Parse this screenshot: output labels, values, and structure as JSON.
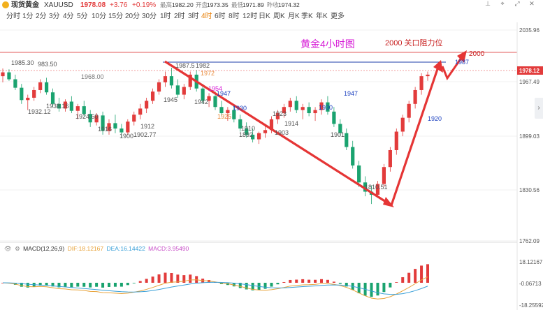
{
  "header": {
    "name": "现货黄金",
    "symbol": "XAUUSD",
    "price": "1978.08",
    "change": "+3.76",
    "pct": "+0.19%",
    "high_label": "最高",
    "high": "1982.20",
    "open_label": "开盘",
    "open": "1973.35",
    "low_label": "最低",
    "low": "1971.89",
    "prev_label": "昨收",
    "prev": "1974.32",
    "colors": {
      "up": "#e23b3b",
      "down": "#1aa36f"
    }
  },
  "toolbar_icons": [
    "pin-icon",
    "crosshair-icon",
    "fullscreen-icon",
    "close-icon"
  ],
  "tabs": [
    {
      "label": "分时"
    },
    {
      "label": "1分"
    },
    {
      "label": "2分"
    },
    {
      "label": "3分"
    },
    {
      "label": "4分"
    },
    {
      "label": "5分"
    },
    {
      "label": "10分"
    },
    {
      "label": "15分"
    },
    {
      "label": "20分"
    },
    {
      "label": "30分"
    },
    {
      "label": "1时"
    },
    {
      "label": "2时"
    },
    {
      "label": "3时"
    },
    {
      "label": "4时",
      "active": true
    },
    {
      "label": "6时"
    },
    {
      "label": "8时"
    },
    {
      "label": "12时"
    },
    {
      "label": "日K"
    },
    {
      "label": "周K"
    },
    {
      "label": "月K"
    },
    {
      "label": "季K"
    },
    {
      "label": "年K"
    },
    {
      "label": "更多"
    }
  ],
  "chart": {
    "axis_labels": [
      "2035.96",
      "1967.49",
      "1899.03",
      "1830.56",
      "1762.09"
    ],
    "current_price_tag": "1978.12",
    "title": "黄金4小时图",
    "note": "2000 关口阻力位",
    "target_label": "2000",
    "annotations": {
      "a1985": "1985.30",
      "a1983": "983.50",
      "a1968": "1968.00",
      "a1932": "1932.12",
      "a1938": "1938.16",
      "a1924": "1924.60",
      "a1916": "1916",
      "a1900": "1900",
      "a1902": "1902.77",
      "a1912": "1912",
      "a1945": "1945",
      "a1987": "1987.5",
      "a1982": "1982",
      "a1972": "1972",
      "a1947a": "1947",
      "a1954": "1954",
      "a1942": "1942",
      "a1930a": "1930",
      "a1925": "1925",
      "a1910": "1910",
      "a1892": "1892",
      "a1923": "1923",
      "a1914": "1914",
      "a1903": "1903",
      "a1930b": "1930",
      "a1947b": "1947",
      "a1901": "1901",
      "a1810": "1810.51",
      "a1920": "1920",
      "a1987b": "1987"
    }
  },
  "chart_data": {
    "type": "candlestick",
    "title": "黄金4小时图",
    "ylim": [
      1762.09,
      2035.96
    ],
    "yticks": [
      2035.96,
      1967.49,
      1899.03,
      1830.56,
      1762.09
    ],
    "candles": [
      [
        1976,
        1986,
        1968,
        1981
      ],
      [
        1981,
        1985,
        1970,
        1972
      ],
      [
        1972,
        1978,
        1958,
        1961
      ],
      [
        1961,
        1966,
        1940,
        1945
      ],
      [
        1945,
        1952,
        1932,
        1948
      ],
      [
        1948,
        1962,
        1944,
        1958
      ],
      [
        1958,
        1972,
        1954,
        1968
      ],
      [
        1968,
        1974,
        1952,
        1955
      ],
      [
        1955,
        1960,
        1936,
        1940
      ],
      [
        1940,
        1948,
        1930,
        1934
      ],
      [
        1934,
        1946,
        1930,
        1943
      ],
      [
        1943,
        1950,
        1928,
        1931
      ],
      [
        1931,
        1940,
        1920,
        1937
      ],
      [
        1937,
        1944,
        1924,
        1927
      ],
      [
        1927,
        1932,
        1910,
        1916
      ],
      [
        1916,
        1928,
        1912,
        1925
      ],
      [
        1925,
        1930,
        1900,
        1905
      ],
      [
        1905,
        1920,
        1900,
        1915
      ],
      [
        1915,
        1926,
        1902,
        1908
      ],
      [
        1908,
        1914,
        1896,
        1903
      ],
      [
        1903,
        1920,
        1900,
        1917
      ],
      [
        1917,
        1930,
        1912,
        1926
      ],
      [
        1926,
        1940,
        1920,
        1934
      ],
      [
        1934,
        1948,
        1928,
        1944
      ],
      [
        1944,
        1960,
        1940,
        1956
      ],
      [
        1956,
        1972,
        1952,
        1968
      ],
      [
        1968,
        1982,
        1962,
        1976
      ],
      [
        1976,
        1987,
        1960,
        1964
      ],
      [
        1964,
        1972,
        1948,
        1952
      ],
      [
        1952,
        1966,
        1946,
        1962
      ],
      [
        1962,
        1982,
        1958,
        1978
      ],
      [
        1978,
        1984,
        1956,
        1960
      ],
      [
        1960,
        1966,
        1940,
        1944
      ],
      [
        1944,
        1954,
        1936,
        1950
      ],
      [
        1950,
        1956,
        1932,
        1936
      ],
      [
        1936,
        1944,
        1924,
        1928
      ],
      [
        1928,
        1936,
        1918,
        1932
      ],
      [
        1932,
        1938,
        1916,
        1920
      ],
      [
        1920,
        1926,
        1904,
        1908
      ],
      [
        1908,
        1916,
        1896,
        1900
      ],
      [
        1900,
        1908,
        1890,
        1894
      ],
      [
        1894,
        1904,
        1888,
        1902
      ],
      [
        1902,
        1912,
        1896,
        1906
      ],
      [
        1906,
        1924,
        1902,
        1920
      ],
      [
        1920,
        1932,
        1914,
        1928
      ],
      [
        1928,
        1940,
        1922,
        1936
      ],
      [
        1936,
        1948,
        1930,
        1944
      ],
      [
        1944,
        1950,
        1928,
        1932
      ],
      [
        1932,
        1940,
        1920,
        1936
      ],
      [
        1936,
        1942,
        1924,
        1928
      ],
      [
        1928,
        1936,
        1918,
        1932
      ],
      [
        1932,
        1946,
        1926,
        1942
      ],
      [
        1942,
        1950,
        1926,
        1930
      ],
      [
        1930,
        1936,
        1910,
        1914
      ],
      [
        1914,
        1920,
        1898,
        1902
      ],
      [
        1902,
        1908,
        1880,
        1884
      ],
      [
        1884,
        1892,
        1856,
        1860
      ],
      [
        1860,
        1866,
        1832,
        1838
      ],
      [
        1838,
        1846,
        1820,
        1826
      ],
      [
        1826,
        1834,
        1810,
        1822
      ],
      [
        1822,
        1840,
        1818,
        1836
      ],
      [
        1836,
        1862,
        1832,
        1858
      ],
      [
        1858,
        1884,
        1852,
        1880
      ],
      [
        1880,
        1908,
        1874,
        1904
      ],
      [
        1904,
        1926,
        1898,
        1922
      ],
      [
        1922,
        1944,
        1916,
        1940
      ],
      [
        1940,
        1962,
        1934,
        1958
      ],
      [
        1958,
        1980,
        1952,
        1976
      ],
      [
        1976,
        1982,
        1970,
        1978
      ]
    ],
    "macd": {
      "params": "MACD(12,26,9)",
      "dif": 18.12167,
      "dea": 16.14422,
      "macd": 3.9549,
      "axis": [
        "18.12167",
        "-0.06713",
        "-18.25592"
      ]
    }
  },
  "macd_header": {
    "label": "MACD(12,26,9)",
    "dif": "DIF:18.12167",
    "dea": "DEA:16.14422",
    "macd": "MACD:3.95490",
    "colors": {
      "dif": "#e8a33a",
      "dea": "#3aa0d8",
      "macd": "#c84fc8"
    }
  }
}
